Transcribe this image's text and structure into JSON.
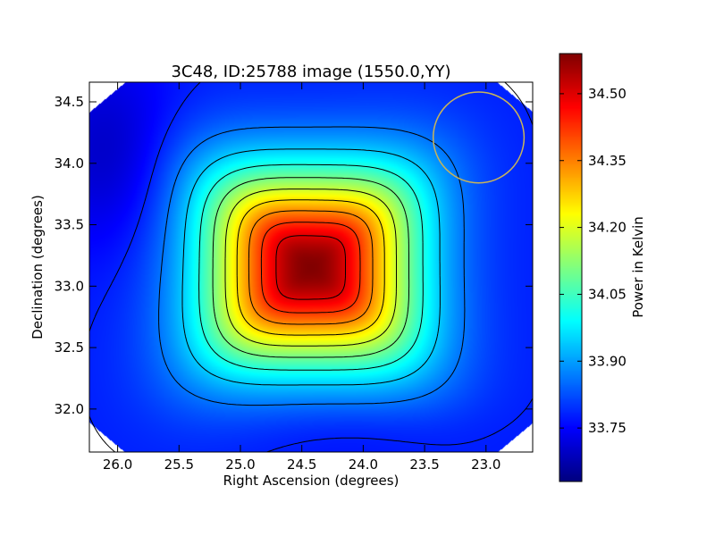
{
  "chart_data": {
    "type": "heatmap",
    "title": "3C48, ID:25788 image (1550.0,YY)",
    "xlabel": "Right Ascension (degrees)",
    "ylabel": "Declination (degrees)",
    "xlim": [
      26.23,
      22.62
    ],
    "ylim": [
      31.65,
      34.66
    ],
    "xticks": [
      {
        "value": 26.0,
        "label": "26.0"
      },
      {
        "value": 25.5,
        "label": "25.5"
      },
      {
        "value": 25.0,
        "label": "25.0"
      },
      {
        "value": 24.5,
        "label": "24.5"
      },
      {
        "value": 24.0,
        "label": "24.0"
      },
      {
        "value": 23.5,
        "label": "23.5"
      },
      {
        "value": 23.0,
        "label": "23.0"
      }
    ],
    "yticks": [
      {
        "value": 32.0,
        "label": "32.0"
      },
      {
        "value": 32.5,
        "label": "32.5"
      },
      {
        "value": 33.0,
        "label": "33.0"
      },
      {
        "value": 33.5,
        "label": "33.5"
      },
      {
        "value": 34.0,
        "label": "34.0"
      },
      {
        "value": 34.5,
        "label": "34.5"
      }
    ],
    "colorbar": {
      "label": "Power in Kelvin",
      "colormap": "jet",
      "range": [
        33.63,
        34.59
      ],
      "ticks": [
        {
          "value": 33.75,
          "label": "33.75"
        },
        {
          "value": 33.9,
          "label": "33.90"
        },
        {
          "value": 34.05,
          "label": "34.05"
        },
        {
          "value": 34.2,
          "label": "34.20"
        },
        {
          "value": 34.35,
          "label": "34.35"
        },
        {
          "value": 34.5,
          "label": "34.50"
        }
      ]
    },
    "source_peak": {
      "ra": 24.42,
      "dec": 33.15,
      "value": 34.57
    },
    "contour_color": "#000000",
    "beam_circle": {
      "ra": 23.06,
      "dec": 34.21,
      "radius_deg": 0.37,
      "color": "#c8b45a"
    },
    "grid": false,
    "legend": "none"
  }
}
